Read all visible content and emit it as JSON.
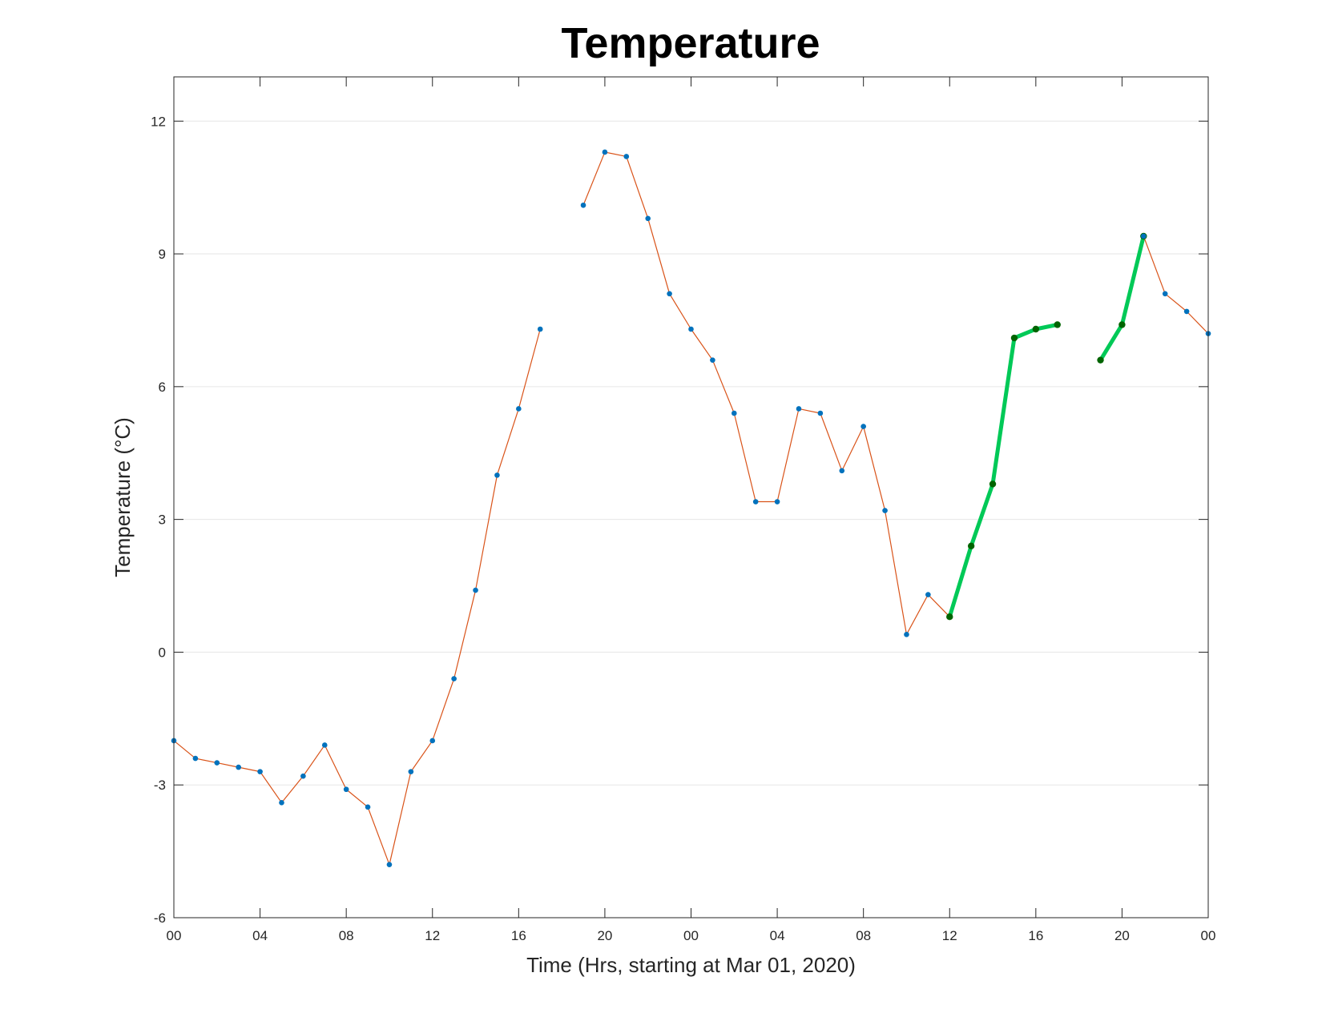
{
  "chart_data": {
    "type": "line",
    "title": "Temperature",
    "xlabel": "Time (Hrs, starting at Mar 01, 2020)",
    "ylabel": "Temperature (°C)",
    "ylim": [
      -6,
      13
    ],
    "xlim": [
      0,
      48
    ],
    "yticks": [
      -6,
      -3,
      0,
      3,
      6,
      9,
      12
    ],
    "x_ticks": [
      {
        "value": 0,
        "label": "00"
      },
      {
        "value": 4,
        "label": "04"
      },
      {
        "value": 8,
        "label": "08"
      },
      {
        "value": 12,
        "label": "12"
      },
      {
        "value": 16,
        "label": "16"
      },
      {
        "value": 20,
        "label": "20"
      },
      {
        "value": 24,
        "label": "00"
      },
      {
        "value": 28,
        "label": "04"
      },
      {
        "value": 32,
        "label": "08"
      },
      {
        "value": 36,
        "label": "12"
      },
      {
        "value": 40,
        "label": "16"
      },
      {
        "value": 44,
        "label": "20"
      },
      {
        "value": 48,
        "label": "00"
      }
    ],
    "grid": "horizontal",
    "series": [
      {
        "color": "#d95319",
        "marker_color": "#0072bd",
        "points": [
          [
            0,
            -2.0
          ],
          [
            1,
            -2.4
          ],
          [
            2,
            -2.5
          ],
          [
            3,
            -2.6
          ],
          [
            4,
            -2.7
          ],
          [
            5,
            -3.4
          ],
          [
            6,
            -2.8
          ],
          [
            7,
            -2.1
          ],
          [
            8,
            -3.1
          ],
          [
            9,
            -3.5
          ],
          [
            10,
            -4.8
          ],
          [
            11,
            -2.7
          ],
          [
            12,
            -2.0
          ],
          [
            13,
            -0.6
          ],
          [
            14,
            1.4
          ],
          [
            15,
            4.0
          ],
          [
            16,
            5.5
          ],
          [
            17,
            7.3
          ],
          null,
          [
            19,
            10.1
          ],
          [
            20,
            11.3
          ],
          [
            21,
            11.2
          ],
          [
            22,
            9.8
          ],
          [
            23,
            8.1
          ],
          [
            24,
            7.3
          ],
          [
            25,
            6.6
          ],
          [
            26,
            5.4
          ],
          [
            27,
            3.4
          ],
          [
            28,
            3.4
          ],
          [
            29,
            5.5
          ],
          [
            30,
            5.4
          ],
          [
            31,
            4.1
          ],
          [
            32,
            5.1
          ],
          [
            33,
            3.2
          ],
          [
            34,
            0.4
          ],
          [
            35,
            1.3
          ],
          [
            36,
            0.8
          ]
        ]
      },
      {
        "color": "#00c957",
        "marker_color": "#006400",
        "highlight": true,
        "points": [
          [
            36,
            0.8
          ],
          [
            37,
            2.4
          ],
          [
            38,
            3.8
          ],
          [
            39,
            7.1
          ],
          [
            40,
            7.3
          ],
          [
            41,
            7.4
          ],
          null,
          [
            43,
            6.6
          ],
          [
            44,
            7.4
          ],
          [
            45,
            9.4
          ]
        ]
      },
      {
        "color": "#d95319",
        "marker_color": "#0072bd",
        "points": [
          [
            45,
            9.4
          ],
          [
            46,
            8.1
          ],
          [
            47,
            7.7
          ],
          [
            48,
            7.2
          ]
        ]
      }
    ]
  }
}
